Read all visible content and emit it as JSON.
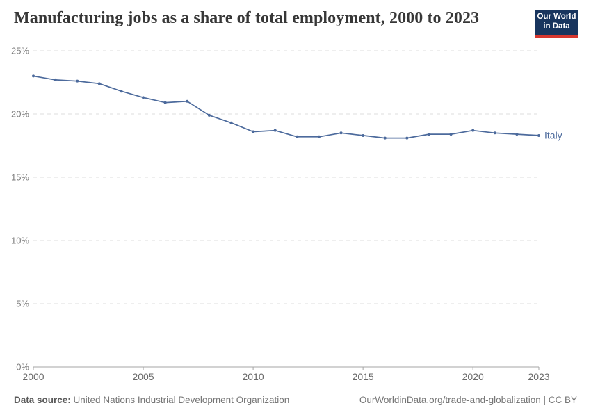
{
  "header": {
    "title": "Manufacturing jobs as a share of total employment, 2000 to 2023",
    "logo": {
      "line1": "Our World",
      "line2": "in Data"
    }
  },
  "colors": {
    "line": "#4c6a9c",
    "grid": "#dcdcdc",
    "axis": "#a5a5a5",
    "x_tick_label": "#6a6a6a",
    "y_tick_label": "#7d7d7d",
    "title": "#373737",
    "logo_bg": "#18355e",
    "logo_red": "#d7372f"
  },
  "chart_data": {
    "type": "line",
    "title": "Manufacturing jobs as a share of total employment, 2000 to 2023",
    "xlabel": "",
    "ylabel": "",
    "x": [
      2000,
      2001,
      2002,
      2003,
      2004,
      2005,
      2006,
      2007,
      2008,
      2009,
      2010,
      2011,
      2012,
      2013,
      2014,
      2015,
      2016,
      2017,
      2018,
      2019,
      2020,
      2021,
      2022,
      2023
    ],
    "series": [
      {
        "name": "Italy",
        "values": [
          23.0,
          22.7,
          22.6,
          22.4,
          21.8,
          21.3,
          20.9,
          21.0,
          19.9,
          19.3,
          18.6,
          18.7,
          18.2,
          18.2,
          18.5,
          18.3,
          18.1,
          18.1,
          18.4,
          18.4,
          18.7,
          18.5,
          18.4,
          18.3
        ]
      }
    ],
    "end_label": "Italy",
    "x_ticks": [
      2000,
      2005,
      2010,
      2015,
      2020,
      2023
    ],
    "y_ticks": [
      0,
      5,
      10,
      15,
      20,
      25
    ],
    "y_tick_suffix": "%",
    "xlim": [
      2000,
      2023
    ],
    "ylim": [
      0,
      25
    ],
    "grid": "horizontal-dashed",
    "legend_position": "end-of-line",
    "markers": true
  },
  "footer": {
    "source_label": "Data source:",
    "source": "United Nations Industrial Development Organization",
    "credit": "OurWorldinData.org/trade-and-globalization | CC BY"
  }
}
